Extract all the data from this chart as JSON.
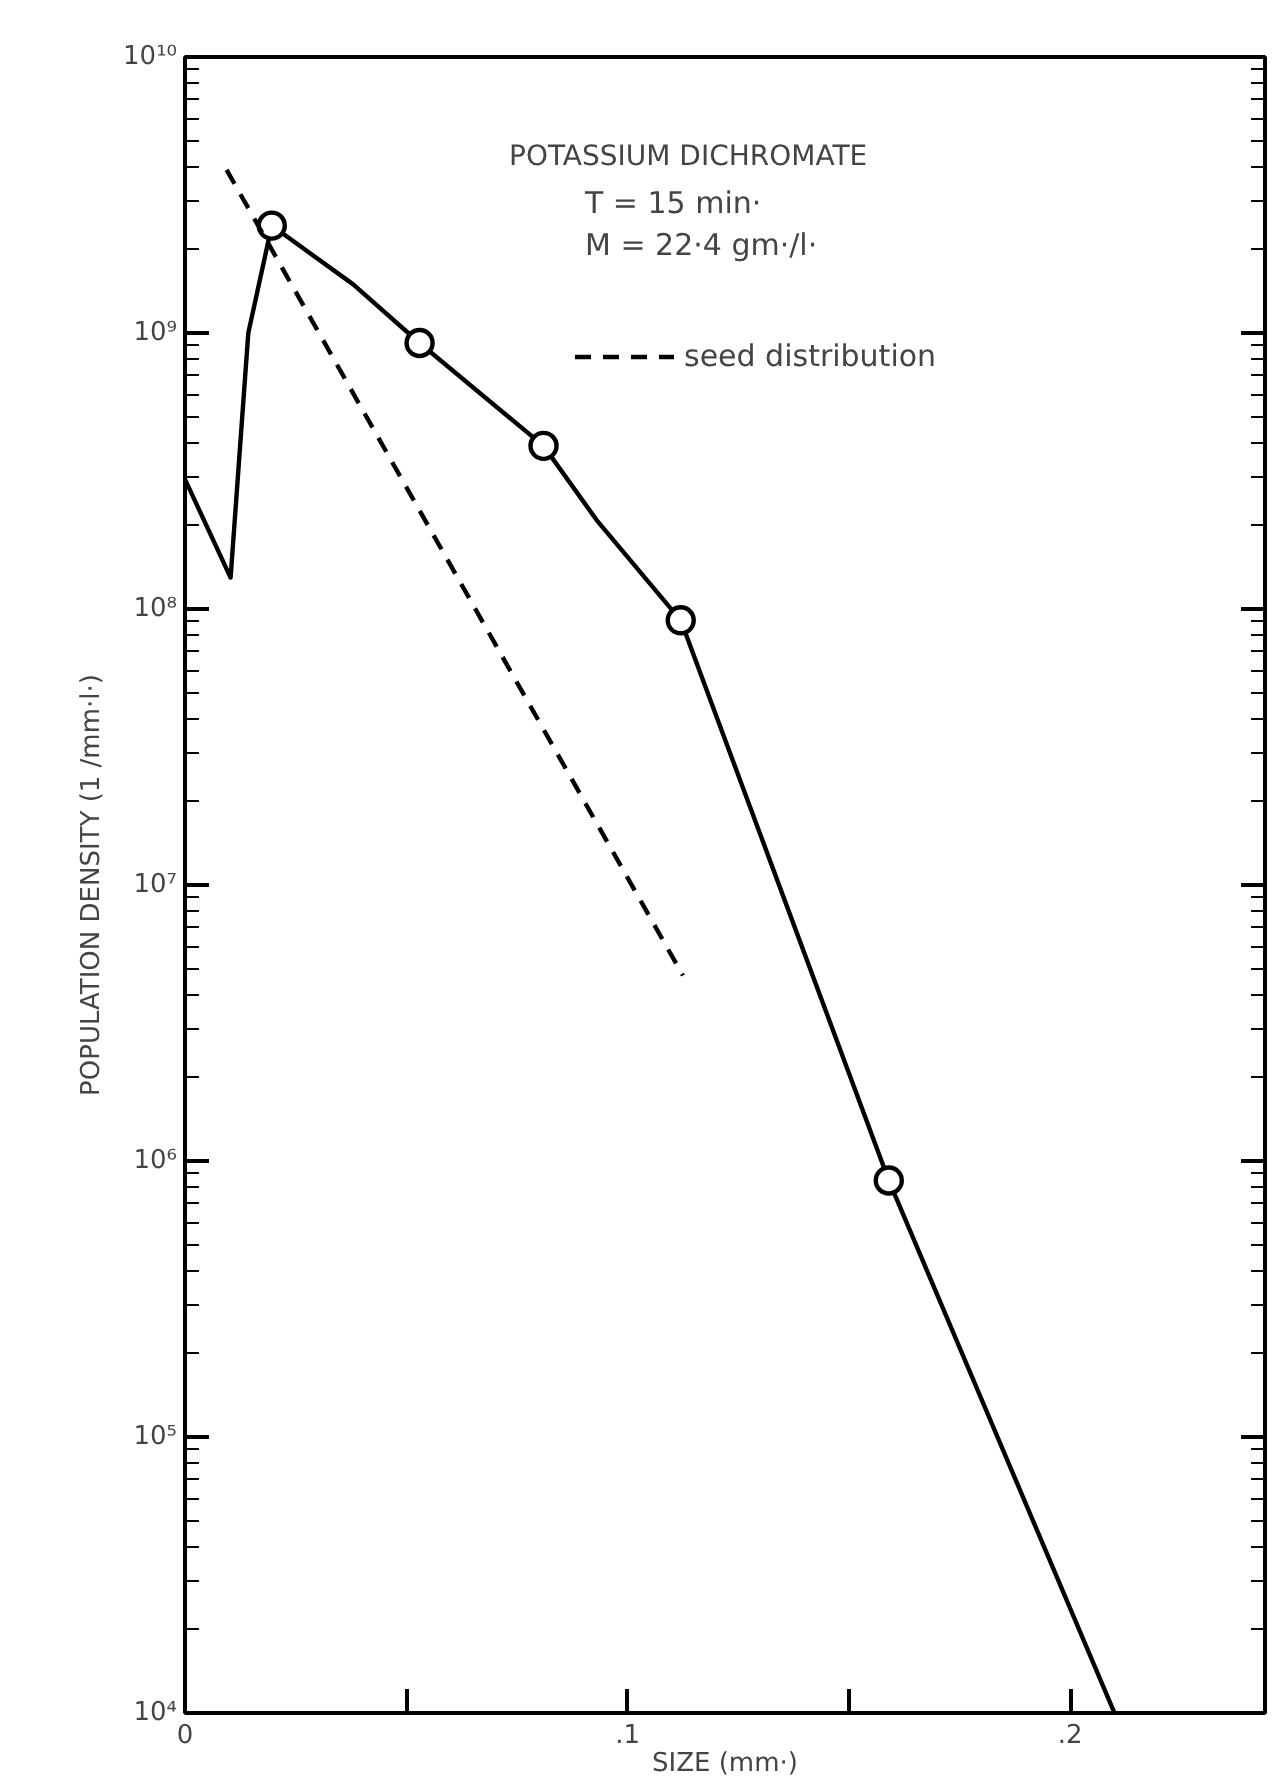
{
  "chart_data": {
    "type": "line",
    "xlabel": "SIZE (mm·)",
    "ylabel": "POPULATION DENSITY (1 /mm·l·)",
    "annotations": [
      "POTASSIUM DICHROMATE",
      "T = 15 min·",
      "M = 22·4 gm·/l·"
    ],
    "log": "y",
    "grid": false,
    "legend": "top right",
    "xlim": [
      0,
      0.244
    ],
    "ylim": [
      10000,
      10000000000
    ],
    "xticks": [
      0,
      {
        "value": 0.05,
        "label": null
      },
      {
        "value": 0.1,
        "label": ".1"
      },
      {
        "value": 0.15,
        "label": null
      },
      {
        "value": 0.2,
        "label": ".2"
      }
    ],
    "yticks": [
      {
        "value": 10000,
        "label": "10⁴"
      },
      {
        "value": 100000,
        "label": "10⁵"
      },
      {
        "value": 1000000,
        "label": "10⁶"
      },
      {
        "value": 10000000,
        "label": "10⁷"
      },
      {
        "value": 100000000,
        "label": "10⁸"
      },
      {
        "value": 1000000000,
        "label": "10⁹"
      },
      {
        "value": 10000000000,
        "label": "10¹⁰"
      }
    ],
    "series": [
      {
        "color": "#000000",
        "line_style": "solid",
        "marker": "none",
        "x": [
          0,
          0.0103,
          0.0143,
          0.0196,
          0.038,
          0.053,
          0.081,
          0.093,
          0.112,
          0.159,
          0.21
        ],
        "values": [
          295000000,
          130000000,
          1000000000,
          2450000000,
          1500000000,
          920000000,
          390000000,
          210000000,
          91000000,
          850000,
          10000
        ]
      },
      {
        "type": "scatter",
        "color": "#000000",
        "marker": "circle",
        "x": [
          0.0196,
          0.053,
          0.081,
          0.112,
          0.159
        ],
        "values": [
          2450000000,
          920000000,
          390000000,
          91000000,
          850000
        ]
      },
      {
        "name": "seed distribution",
        "color": "#000000",
        "line_style": "dashed",
        "marker": "none",
        "x": [
          0.0094,
          0.1125
        ],
        "values": [
          3900000000,
          4700000
        ]
      }
    ]
  }
}
